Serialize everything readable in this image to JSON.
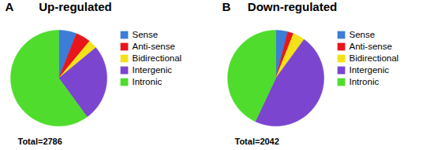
{
  "chart_data": [
    {
      "type": "pie",
      "panel_label": "A",
      "title": "Up-regulated",
      "categories": [
        "Sense",
        "Anti-sense",
        "Bidirectional",
        "Intergenic",
        "Intronic"
      ],
      "values": [
        6,
        5,
        3,
        26,
        60
      ],
      "colors": [
        "#3b7dd8",
        "#e8161b",
        "#f3e21a",
        "#7b45d0",
        "#4fdc2c"
      ],
      "annotations": [
        "Total=2786"
      ],
      "legend": "right"
    },
    {
      "type": "pie",
      "panel_label": "B",
      "title": "Down-regulated",
      "categories": [
        "Sense",
        "Anti-sense",
        "Bidirectional",
        "Intergenic",
        "Intronic"
      ],
      "values": [
        4,
        2,
        4,
        47,
        43
      ],
      "colors": [
        "#3b7dd8",
        "#e8161b",
        "#f3e21a",
        "#7b45d0",
        "#4fdc2c"
      ],
      "annotations": [
        "Total=2042"
      ],
      "legend": "right"
    }
  ]
}
